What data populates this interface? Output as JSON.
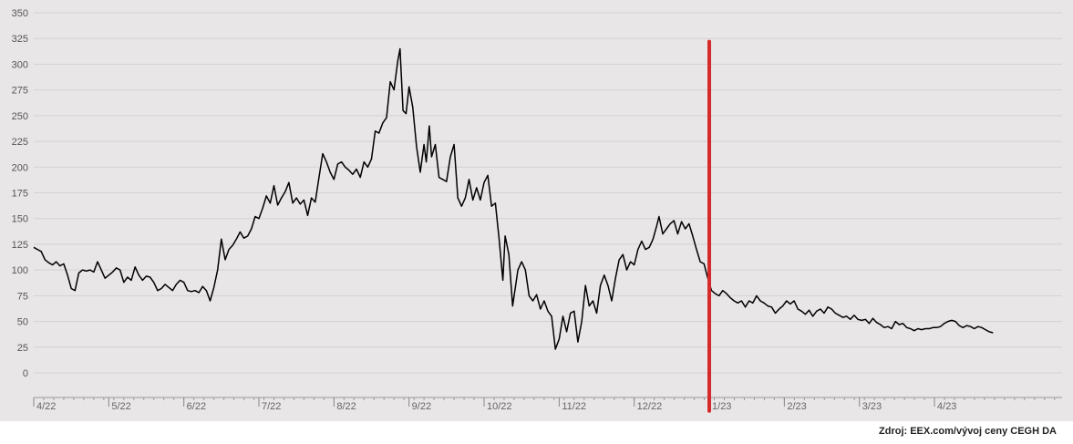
{
  "chart_data": {
    "type": "line",
    "title": "",
    "xlabel": "",
    "ylabel": "",
    "ylim": [
      -30,
      350
    ],
    "yticks": [
      0,
      25,
      50,
      75,
      100,
      125,
      150,
      175,
      200,
      225,
      250,
      275,
      300,
      325,
      350
    ],
    "x_tick_labels": [
      "4/22",
      "5/22",
      "6/22",
      "7/22",
      "8/22",
      "9/22",
      "10/22",
      "11/22",
      "12/22",
      "1/23",
      "2/23",
      "3/23",
      "4/23"
    ],
    "x_range_months": [
      0,
      13.7
    ],
    "grid": true,
    "legend": "none",
    "series": [
      {
        "color": "#000000",
        "points": [
          [
            0.0,
            122
          ],
          [
            0.05,
            120
          ],
          [
            0.1,
            118
          ],
          [
            0.15,
            110
          ],
          [
            0.2,
            107
          ],
          [
            0.25,
            105
          ],
          [
            0.3,
            108
          ],
          [
            0.35,
            104
          ],
          [
            0.4,
            106
          ],
          [
            0.45,
            95
          ],
          [
            0.5,
            82
          ],
          [
            0.55,
            80
          ],
          [
            0.6,
            97
          ],
          [
            0.65,
            100
          ],
          [
            0.7,
            99
          ],
          [
            0.75,
            100
          ],
          [
            0.8,
            98
          ],
          [
            0.85,
            108
          ],
          [
            0.9,
            100
          ],
          [
            0.95,
            92
          ],
          [
            1.0,
            95
          ],
          [
            1.05,
            98
          ],
          [
            1.1,
            102
          ],
          [
            1.15,
            100
          ],
          [
            1.2,
            88
          ],
          [
            1.25,
            93
          ],
          [
            1.3,
            90
          ],
          [
            1.35,
            103
          ],
          [
            1.4,
            95
          ],
          [
            1.45,
            90
          ],
          [
            1.5,
            94
          ],
          [
            1.55,
            93
          ],
          [
            1.6,
            88
          ],
          [
            1.65,
            80
          ],
          [
            1.7,
            82
          ],
          [
            1.75,
            86
          ],
          [
            1.8,
            83
          ],
          [
            1.85,
            80
          ],
          [
            1.9,
            86
          ],
          [
            1.95,
            90
          ],
          [
            2.0,
            88
          ],
          [
            2.05,
            80
          ],
          [
            2.1,
            79
          ],
          [
            2.15,
            80
          ],
          [
            2.2,
            78
          ],
          [
            2.25,
            84
          ],
          [
            2.3,
            80
          ],
          [
            2.35,
            70
          ],
          [
            2.4,
            83
          ],
          [
            2.45,
            100
          ],
          [
            2.5,
            130
          ],
          [
            2.55,
            110
          ],
          [
            2.6,
            120
          ],
          [
            2.65,
            124
          ],
          [
            2.7,
            130
          ],
          [
            2.75,
            137
          ],
          [
            2.8,
            131
          ],
          [
            2.85,
            133
          ],
          [
            2.9,
            140
          ],
          [
            2.95,
            152
          ],
          [
            3.0,
            150
          ],
          [
            3.05,
            160
          ],
          [
            3.1,
            172
          ],
          [
            3.15,
            165
          ],
          [
            3.2,
            182
          ],
          [
            3.25,
            163
          ],
          [
            3.3,
            170
          ],
          [
            3.35,
            176
          ],
          [
            3.4,
            185
          ],
          [
            3.45,
            165
          ],
          [
            3.5,
            170
          ],
          [
            3.55,
            164
          ],
          [
            3.6,
            168
          ],
          [
            3.65,
            153
          ],
          [
            3.7,
            170
          ],
          [
            3.75,
            166
          ],
          [
            3.8,
            190
          ],
          [
            3.85,
            213
          ],
          [
            3.9,
            205
          ],
          [
            3.95,
            195
          ],
          [
            4.0,
            188
          ],
          [
            4.05,
            203
          ],
          [
            4.1,
            205
          ],
          [
            4.15,
            200
          ],
          [
            4.2,
            197
          ],
          [
            4.25,
            193
          ],
          [
            4.3,
            198
          ],
          [
            4.35,
            190
          ],
          [
            4.4,
            205
          ],
          [
            4.45,
            200
          ],
          [
            4.5,
            208
          ],
          [
            4.55,
            235
          ],
          [
            4.6,
            233
          ],
          [
            4.65,
            243
          ],
          [
            4.7,
            248
          ],
          [
            4.75,
            283
          ],
          [
            4.8,
            275
          ],
          [
            4.85,
            303
          ],
          [
            4.88,
            315
          ],
          [
            4.92,
            255
          ],
          [
            4.96,
            252
          ],
          [
            5.0,
            278
          ],
          [
            5.05,
            258
          ],
          [
            5.1,
            220
          ],
          [
            5.15,
            195
          ],
          [
            5.2,
            222
          ],
          [
            5.23,
            205
          ],
          [
            5.27,
            240
          ],
          [
            5.3,
            210
          ],
          [
            5.35,
            222
          ],
          [
            5.4,
            190
          ],
          [
            5.45,
            188
          ],
          [
            5.5,
            186
          ],
          [
            5.55,
            210
          ],
          [
            5.6,
            222
          ],
          [
            5.65,
            170
          ],
          [
            5.7,
            162
          ],
          [
            5.75,
            170
          ],
          [
            5.8,
            188
          ],
          [
            5.85,
            168
          ],
          [
            5.9,
            180
          ],
          [
            5.95,
            168
          ],
          [
            6.0,
            185
          ],
          [
            6.05,
            192
          ],
          [
            6.1,
            162
          ],
          [
            6.15,
            165
          ],
          [
            6.2,
            130
          ],
          [
            6.25,
            90
          ],
          [
            6.28,
            133
          ],
          [
            6.33,
            115
          ],
          [
            6.38,
            65
          ],
          [
            6.45,
            100
          ],
          [
            6.5,
            108
          ],
          [
            6.55,
            100
          ],
          [
            6.6,
            75
          ],
          [
            6.65,
            70
          ],
          [
            6.7,
            76
          ],
          [
            6.75,
            62
          ],
          [
            6.8,
            70
          ],
          [
            6.85,
            60
          ],
          [
            6.9,
            55
          ],
          [
            6.95,
            23
          ],
          [
            7.0,
            33
          ],
          [
            7.05,
            55
          ],
          [
            7.1,
            40
          ],
          [
            7.15,
            58
          ],
          [
            7.2,
            60
          ],
          [
            7.25,
            30
          ],
          [
            7.3,
            50
          ],
          [
            7.35,
            85
          ],
          [
            7.4,
            65
          ],
          [
            7.45,
            70
          ],
          [
            7.5,
            58
          ],
          [
            7.55,
            85
          ],
          [
            7.6,
            95
          ],
          [
            7.65,
            85
          ],
          [
            7.7,
            70
          ],
          [
            7.75,
            92
          ],
          [
            7.8,
            110
          ],
          [
            7.85,
            115
          ],
          [
            7.9,
            100
          ],
          [
            7.95,
            108
          ],
          [
            8.0,
            105
          ],
          [
            8.05,
            120
          ],
          [
            8.1,
            128
          ],
          [
            8.15,
            120
          ],
          [
            8.2,
            122
          ],
          [
            8.25,
            130
          ],
          [
            8.3,
            143
          ],
          [
            8.33,
            152
          ],
          [
            8.38,
            135
          ],
          [
            8.43,
            140
          ],
          [
            8.48,
            145
          ],
          [
            8.53,
            148
          ],
          [
            8.58,
            135
          ],
          [
            8.63,
            147
          ],
          [
            8.68,
            140
          ],
          [
            8.73,
            145
          ],
          [
            8.78,
            133
          ],
          [
            8.83,
            120
          ],
          [
            8.88,
            108
          ],
          [
            8.93,
            106
          ],
          [
            8.98,
            92
          ],
          [
            9.03,
            80
          ],
          [
            9.08,
            77
          ],
          [
            9.13,
            75
          ],
          [
            9.18,
            80
          ],
          [
            9.23,
            77
          ],
          [
            9.28,
            73
          ],
          [
            9.33,
            70
          ],
          [
            9.38,
            68
          ],
          [
            9.43,
            70
          ],
          [
            9.48,
            64
          ],
          [
            9.53,
            70
          ],
          [
            9.58,
            68
          ],
          [
            9.63,
            75
          ],
          [
            9.68,
            70
          ],
          [
            9.73,
            68
          ],
          [
            9.78,
            65
          ],
          [
            9.83,
            64
          ],
          [
            9.88,
            58
          ],
          [
            9.93,
            62
          ],
          [
            9.98,
            65
          ],
          [
            10.03,
            70
          ],
          [
            10.08,
            67
          ],
          [
            10.13,
            70
          ],
          [
            10.18,
            62
          ],
          [
            10.23,
            60
          ],
          [
            10.28,
            57
          ],
          [
            10.33,
            61
          ],
          [
            10.38,
            55
          ],
          [
            10.43,
            60
          ],
          [
            10.48,
            62
          ],
          [
            10.53,
            58
          ],
          [
            10.58,
            64
          ],
          [
            10.63,
            62
          ],
          [
            10.68,
            58
          ],
          [
            10.73,
            56
          ],
          [
            10.78,
            54
          ],
          [
            10.83,
            55
          ],
          [
            10.88,
            52
          ],
          [
            10.93,
            56
          ],
          [
            10.98,
            52
          ],
          [
            11.03,
            51
          ],
          [
            11.08,
            52
          ],
          [
            11.13,
            48
          ],
          [
            11.18,
            53
          ],
          [
            11.23,
            49
          ],
          [
            11.28,
            47
          ],
          [
            11.33,
            44
          ],
          [
            11.38,
            45
          ],
          [
            11.43,
            43
          ],
          [
            11.48,
            50
          ],
          [
            11.53,
            47
          ],
          [
            11.58,
            48
          ],
          [
            11.63,
            44
          ],
          [
            11.68,
            43
          ],
          [
            11.73,
            41
          ],
          [
            11.78,
            43
          ],
          [
            11.83,
            42
          ],
          [
            11.88,
            43
          ],
          [
            11.93,
            43
          ],
          [
            11.98,
            44
          ],
          [
            12.03,
            44
          ],
          [
            12.08,
            45
          ],
          [
            12.13,
            48
          ],
          [
            12.18,
            50
          ],
          [
            12.23,
            51
          ],
          [
            12.28,
            50
          ],
          [
            12.33,
            46
          ],
          [
            12.38,
            44
          ],
          [
            12.43,
            46
          ],
          [
            12.48,
            45
          ],
          [
            12.53,
            43
          ],
          [
            12.58,
            45
          ],
          [
            12.63,
            44
          ],
          [
            12.68,
            42
          ],
          [
            12.73,
            40
          ],
          [
            12.78,
            39
          ]
        ]
      }
    ],
    "marker_line": {
      "x": 9.0,
      "y_top": 322,
      "y_bottom": -37,
      "color": "#d62a2a"
    }
  },
  "source_note": "Zdroj: EEX.com/vývoj ceny CEGH DA"
}
